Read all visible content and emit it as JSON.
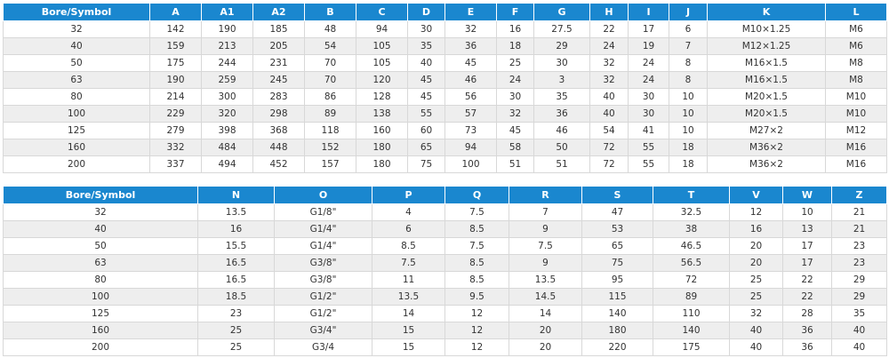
{
  "tables": [
    {
      "header": [
        "Bore/Symbol",
        "A",
        "A1",
        "A2",
        "B",
        "C",
        "D",
        "E",
        "F",
        "G",
        "H",
        "I",
        "J",
        "K",
        "L"
      ],
      "rows": [
        [
          32,
          142,
          190,
          185,
          48,
          94,
          30,
          32,
          16,
          27.5,
          22,
          17,
          6,
          "M10×1.25",
          "M6"
        ],
        [
          40,
          159,
          213,
          205,
          54,
          105,
          35,
          36,
          18,
          29,
          24,
          19,
          7,
          "M12×1.25",
          "M6"
        ],
        [
          50,
          175,
          244,
          231,
          70,
          105,
          40,
          45,
          25,
          30,
          32,
          24,
          8,
          "M16×1.5",
          "M8"
        ],
        [
          63,
          190,
          259,
          245,
          70,
          120,
          45,
          46,
          24,
          3,
          32,
          24,
          8,
          "M16×1.5",
          "M8"
        ],
        [
          80,
          214,
          300,
          283,
          86,
          128,
          45,
          56,
          30,
          35,
          40,
          30,
          10,
          "M20×1.5",
          "M10"
        ],
        [
          100,
          229,
          320,
          298,
          89,
          138,
          55,
          57,
          32,
          36,
          40,
          30,
          10,
          "M20×1.5",
          "M10"
        ],
        [
          125,
          279,
          398,
          368,
          118,
          160,
          60,
          73,
          45,
          46,
          54,
          41,
          10,
          "M27×2",
          "M12"
        ],
        [
          160,
          332,
          484,
          448,
          152,
          180,
          65,
          94,
          58,
          50,
          72,
          55,
          18,
          "M36×2",
          "M16"
        ],
        [
          200,
          337,
          494,
          452,
          157,
          180,
          75,
          100,
          51,
          51,
          72,
          55,
          18,
          "M36×2",
          "M16"
        ]
      ]
    },
    {
      "header": [
        "Bore/Symbol",
        "N",
        "O",
        "P",
        "Q",
        "R",
        "S",
        "T",
        "V",
        "W",
        "Z"
      ],
      "rows": [
        [
          32,
          13.5,
          "G1/8\"",
          4,
          7.5,
          7,
          47,
          32.5,
          12,
          10,
          21
        ],
        [
          40,
          16,
          "G1/4\"",
          6,
          8.5,
          9,
          53,
          38,
          16,
          13,
          21
        ],
        [
          50,
          15.5,
          "G1/4\"",
          8.5,
          7.5,
          7.5,
          65,
          46.5,
          20,
          17,
          23
        ],
        [
          63,
          16.5,
          "G3/8\"",
          7.5,
          8.5,
          9,
          75,
          56.5,
          20,
          17,
          23
        ],
        [
          80,
          16.5,
          "G3/8\"",
          11,
          8.5,
          13.5,
          95,
          72,
          25,
          22,
          29
        ],
        [
          100,
          18.5,
          "G1/2\"",
          13.5,
          9.5,
          14.5,
          115,
          89,
          25,
          22,
          29
        ],
        [
          125,
          23,
          "G1/2\"",
          14,
          12,
          14,
          140,
          110,
          32,
          28,
          35
        ],
        [
          160,
          25,
          "G3/4\"",
          15,
          12,
          20,
          180,
          140,
          40,
          36,
          40
        ],
        [
          200,
          25,
          "G3/4",
          15,
          12,
          20,
          220,
          175,
          40,
          36,
          40
        ]
      ]
    }
  ]
}
